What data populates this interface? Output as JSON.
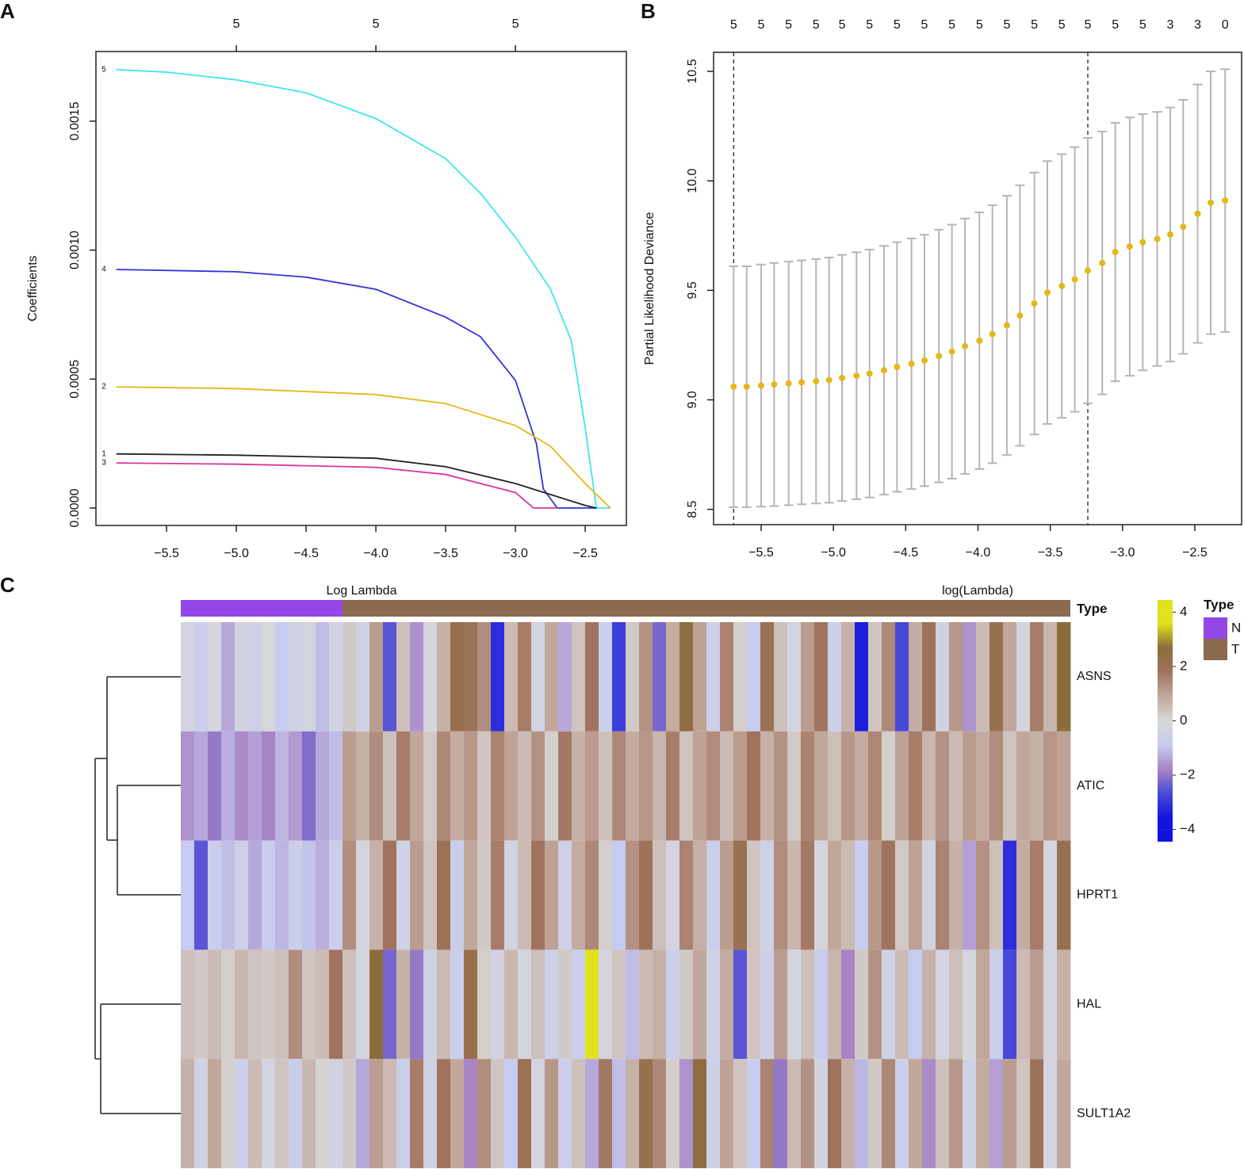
{
  "chart_data": [
    {
      "type": "line",
      "panel": "A",
      "xlabel": "Log Lambda",
      "ylabel": "Coefficients",
      "xlim": [
        -6.006,
        -2.205
      ],
      "ylim": [
        -6.76e-05,
        0.00177
      ],
      "xticks": [
        {
          "value": -5.5,
          "label": "−5.5"
        },
        {
          "value": -5.0,
          "label": "−5.0"
        },
        {
          "value": -4.5,
          "label": "−4.5"
        },
        {
          "value": -4.0,
          "label": "−4.0"
        },
        {
          "value": -3.5,
          "label": "−3.5"
        },
        {
          "value": -3.0,
          "label": "−3.0"
        },
        {
          "value": -2.5,
          "label": "−2.5"
        }
      ],
      "yticks": [
        {
          "value": 0,
          "label": "0.0000"
        },
        {
          "value": 0.0005,
          "label": "0.0005"
        },
        {
          "value": 0.001,
          "label": "0.0010"
        },
        {
          "value": 0.0015,
          "label": "0.0015"
        }
      ],
      "x2ticks": [
        {
          "value": -5.0,
          "label": "5"
        },
        {
          "value": -4.0,
          "label": "5"
        },
        {
          "value": -3.0,
          "label": "5"
        }
      ],
      "x2tick_marks": true,
      "series": [
        {
          "name": "5",
          "color": "#3ee6ec",
          "x": [
            -5.86,
            -5.5,
            -5.0,
            -4.5,
            -4.0,
            -3.5,
            -3.25,
            -3.0,
            -2.75,
            -2.6,
            -2.5,
            -2.42,
            -2.32
          ],
          "values": [
            0.0017,
            0.00169,
            0.00166,
            0.00161,
            0.00151,
            0.001355,
            0.00122,
            0.00105,
            0.00085,
            0.00065,
            0.00031,
            0,
            0
          ]
        },
        {
          "name": "4",
          "color": "#3232d8",
          "x": [
            -5.86,
            -5.0,
            -4.5,
            -4.0,
            -3.5,
            -3.25,
            -3.0,
            -2.85,
            -2.8,
            -2.7,
            -2.42
          ],
          "values": [
            0.000925,
            0.000916,
            0.000895,
            0.000848,
            0.00074,
            0.000664,
            0.000495,
            0.00025,
            7.4e-05,
            0,
            0
          ]
        },
        {
          "name": "2",
          "color": "#e3b817",
          "x": [
            -5.86,
            -5.0,
            -4.0,
            -3.5,
            -3.0,
            -2.75,
            -2.5,
            -2.32
          ],
          "values": [
            0.00047,
            0.000463,
            0.00044,
            0.000405,
            0.00032,
            0.00024,
            9.5e-05,
            0
          ]
        },
        {
          "name": "1",
          "color": "#222222",
          "x": [
            -5.86,
            -5.0,
            -4.0,
            -3.5,
            -3.0,
            -2.5,
            -2.42
          ],
          "values": [
            0.00021,
            0.000205,
            0.000193,
            0.00016,
            9.5e-05,
            1e-05,
            0
          ]
        },
        {
          "name": "3",
          "color": "#d8369c",
          "x": [
            -5.86,
            -5.0,
            -4.0,
            -3.5,
            -3.0,
            -2.87,
            -2.7
          ],
          "values": [
            0.000175,
            0.00017,
            0.000158,
            0.00013,
            6e-05,
            0,
            0
          ]
        }
      ]
    },
    {
      "type": "errorbar",
      "panel": "B",
      "xlabel": "log(Lambda)",
      "ylabel": "Partial Likelihood Deviance",
      "color": "#e3b817",
      "error_color": "#b5b5b5",
      "xlim": [
        -5.829,
        -2.176
      ],
      "ylim": [
        8.43,
        10.587
      ],
      "xticks": [
        {
          "value": -5.5,
          "label": "−5.5"
        },
        {
          "value": -5.0,
          "label": "−5.0"
        },
        {
          "value": -4.5,
          "label": "−4.5"
        },
        {
          "value": -4.0,
          "label": "−4.0"
        },
        {
          "value": -3.5,
          "label": "−3.5"
        },
        {
          "value": -3.0,
          "label": "−3.0"
        },
        {
          "value": -2.5,
          "label": "−2.5"
        }
      ],
      "yticks": [
        8.5,
        {
          "value": 9.0,
          "label": "9.0"
        },
        9.5,
        {
          "value": 10.0,
          "label": "10.0"
        },
        10.5
      ],
      "x2ticks": [
        {
          "value": -5.69,
          "label": "5"
        },
        {
          "value": -5.5,
          "label": "5"
        },
        {
          "value": -5.31,
          "label": "5"
        },
        {
          "value": -5.12,
          "label": "5"
        },
        {
          "value": -4.94,
          "label": "5"
        },
        {
          "value": -4.75,
          "label": "5"
        },
        {
          "value": -4.56,
          "label": "5"
        },
        {
          "value": -4.37,
          "label": "5"
        },
        {
          "value": -4.18,
          "label": "5"
        },
        {
          "value": -3.99,
          "label": "5"
        },
        {
          "value": -3.8,
          "label": "5"
        },
        {
          "value": -3.61,
          "label": "5"
        },
        {
          "value": -3.42,
          "label": "5"
        },
        {
          "value": -3.24,
          "label": "5"
        },
        {
          "value": -3.05,
          "label": "5"
        },
        {
          "value": -2.86,
          "label": "5"
        },
        {
          "value": -2.67,
          "label": "3"
        },
        {
          "value": -2.48,
          "label": "3"
        },
        {
          "value": -2.29,
          "label": "0"
        }
      ],
      "x2tick_marks": false,
      "vlines": [
        -5.69,
        -3.24
      ],
      "x": [
        -5.69,
        -5.6,
        -5.5,
        -5.41,
        -5.31,
        -5.22,
        -5.12,
        -5.03,
        -4.94,
        -4.84,
        -4.75,
        -4.65,
        -4.56,
        -4.46,
        -4.37,
        -4.27,
        -4.18,
        -4.09,
        -3.99,
        -3.9,
        -3.8,
        -3.71,
        -3.61,
        -3.52,
        -3.42,
        -3.33,
        -3.24,
        -3.14,
        -3.05,
        -2.95,
        -2.86,
        -2.76,
        -2.67,
        -2.58,
        -2.48,
        -2.39,
        -2.29
      ],
      "values": [
        9.06,
        9.06,
        9.065,
        9.07,
        9.075,
        9.08,
        9.085,
        9.09,
        9.1,
        9.11,
        9.12,
        9.135,
        9.15,
        9.165,
        9.18,
        9.2,
        9.22,
        9.245,
        9.27,
        9.3,
        9.34,
        9.385,
        9.44,
        9.49,
        9.52,
        9.55,
        9.59,
        9.625,
        9.675,
        9.7,
        9.72,
        9.735,
        9.755,
        9.79,
        9.85,
        9.9,
        9.91
      ],
      "errors": [
        0.55,
        0.55,
        0.553,
        0.555,
        0.556,
        0.557,
        0.558,
        0.56,
        0.562,
        0.564,
        0.566,
        0.568,
        0.57,
        0.572,
        0.574,
        0.577,
        0.58,
        0.583,
        0.586,
        0.589,
        0.592,
        0.595,
        0.598,
        0.6,
        0.602,
        0.604,
        0.606,
        0.6,
        0.59,
        0.59,
        0.585,
        0.58,
        0.58,
        0.58,
        0.59,
        0.6,
        0.6
      ]
    },
    {
      "type": "heatmap",
      "panel": "C",
      "rows": [
        "ASNS",
        "ATIC",
        "HPRT1",
        "HAL",
        "SULT1A2"
      ],
      "annotation_label": "Type",
      "legend_title": "Type",
      "groups": [
        {
          "name": "N",
          "color": "#9347e6",
          "n": 12
        },
        {
          "name": "T",
          "color": "#8b6a50",
          "n": 54
        }
      ],
      "colorscale": [
        [
          -4,
          "#1212e0"
        ],
        [
          -3,
          "#4848d8"
        ],
        [
          -2,
          "#a884c4"
        ],
        [
          -1,
          "#c6cbf0"
        ],
        [
          0,
          "#d8d8d8"
        ],
        [
          1,
          "#c2a79c"
        ],
        [
          2,
          "#a0735e"
        ],
        [
          3,
          "#8c6c3a"
        ],
        [
          4,
          "#e2e21c"
        ]
      ],
      "colorbar_lim": [
        -4.45,
        4.45
      ],
      "colorbar_ticks": [
        4,
        2,
        0,
        {
          "value": -2,
          "label": "−2"
        },
        {
          "value": -4,
          "label": "−4"
        }
      ],
      "values": [
        [
          -0.3,
          -0.8,
          -0.2,
          -1.5,
          -0.4,
          -0.6,
          -0.1,
          -1.0,
          -0.5,
          -0.3,
          -1.2,
          -0.4,
          0.3,
          -0.5,
          1.2,
          -2.8,
          0.5,
          -1.8,
          -0.2,
          0.8,
          2.5,
          2.2,
          1.5,
          -3.5,
          0.6,
          1.8,
          -0.4,
          1.0,
          -1.5,
          0.4,
          2.0,
          -0.8,
          -3.2,
          0.3,
          1.4,
          -2.5,
          0.9,
          2.8,
          1.1,
          -0.6,
          1.7,
          0.2,
          -1.0,
          2.3,
          0.5,
          -0.3,
          1.2,
          2.0,
          -0.7,
          0.8,
          -3.8,
          0.4,
          1.6,
          -3.0,
          0.9,
          2.1,
          -0.5,
          1.3,
          -1.8,
          0.6,
          2.4,
          1.0,
          -0.2,
          1.8,
          0.7,
          3.0
        ],
        [
          -1.8,
          -1.5,
          -2.2,
          -1.4,
          -1.9,
          -1.6,
          -2.0,
          -1.3,
          -1.7,
          -2.4,
          -1.5,
          -1.2,
          1.2,
          0.8,
          1.5,
          0.5,
          1.8,
          1.0,
          0.3,
          1.6,
          0.9,
          1.3,
          0.4,
          1.7,
          1.1,
          0.6,
          1.4,
          0.2,
          1.9,
          0.8,
          1.2,
          0.5,
          1.6,
          0.9,
          1.3,
          0.7,
          1.8,
          0.4,
          1.1,
          1.5,
          0.6,
          1.2,
          2.0,
          0.8,
          1.4,
          0.3,
          1.7,
          1.0,
          0.5,
          1.3,
          0.9,
          1.6,
          0.2,
          1.1,
          1.8,
          0.7,
          1.4,
          0.6,
          1.2,
          0.9,
          1.5,
          0.4,
          1.0,
          0.8,
          1.3,
          1.1
        ],
        [
          -1.0,
          -2.8,
          -0.8,
          -1.2,
          -0.6,
          -1.5,
          -0.9,
          -1.3,
          -0.7,
          -1.1,
          -1.4,
          -0.8,
          1.5,
          -0.3,
          0.8,
          2.0,
          -0.5,
          1.2,
          0.4,
          2.2,
          -0.8,
          1.0,
          0.3,
          1.8,
          -0.4,
          0.6,
          2.0,
          1.1,
          -0.6,
          0.9,
          1.6,
          0.2,
          -1.0,
          1.4,
          2.1,
          0.5,
          -0.3,
          1.7,
          0.8,
          -0.7,
          1.2,
          2.3,
          0.4,
          -0.5,
          1.5,
          0.7,
          1.9,
          -0.2,
          1.0,
          0.6,
          -0.9,
          1.3,
          2.0,
          0.3,
          1.1,
          -0.4,
          1.7,
          0.8,
          -1.6,
          1.4,
          0.5,
          -3.5,
          0.9,
          1.8,
          -0.3,
          2.4
        ],
        [
          0.5,
          0.3,
          0.6,
          0.2,
          0.7,
          0.4,
          0.3,
          0.5,
          1.5,
          0.4,
          0.6,
          2.0,
          0.5,
          -0.3,
          3.0,
          -2.5,
          0.8,
          -2.2,
          -0.5,
          0.6,
          -0.8,
          2.5,
          0.2,
          -0.4,
          0.7,
          -0.2,
          0.5,
          -0.6,
          0.3,
          -0.8,
          4.2,
          -0.3,
          0.4,
          -1.2,
          0.6,
          0.8,
          -0.7,
          0.3,
          1.0,
          -0.5,
          0.9,
          -2.8,
          0.4,
          -0.6,
          1.2,
          -0.3,
          0.5,
          -0.9,
          0.7,
          -2.0,
          0.3,
          1.4,
          -0.5,
          0.6,
          -1.0,
          0.8,
          -0.4,
          0.5,
          -0.2,
          1.0,
          -0.7,
          -3.0,
          0.6,
          1.2,
          -0.3,
          0.8
        ],
        [
          0.8,
          -0.5,
          1.0,
          0.2,
          -0.7,
          0.6,
          -0.3,
          0.4,
          -0.8,
          0.7,
          0.1,
          -0.4,
          0.3,
          -1.5,
          1.2,
          0.6,
          -0.8,
          1.8,
          -0.5,
          2.0,
          1.0,
          -2.0,
          1.5,
          0.4,
          -1.0,
          2.2,
          -0.3,
          1.3,
          -0.8,
          0.5,
          -1.5,
          1.9,
          -1.2,
          0.8,
          2.4,
          1.6,
          0.2,
          -1.8,
          2.8,
          -0.6,
          1.1,
          0.4,
          -0.9,
          1.7,
          -2.2,
          0.6,
          1.4,
          -0.4,
          2.0,
          0.8,
          -1.3,
          0.3,
          1.6,
          -0.7,
          1.0,
          -1.9,
          0.5,
          1.3,
          -0.5,
          0.9,
          -1.6,
          1.2,
          0.4,
          2.1,
          -0.3,
          1.0
        ]
      ]
    }
  ]
}
